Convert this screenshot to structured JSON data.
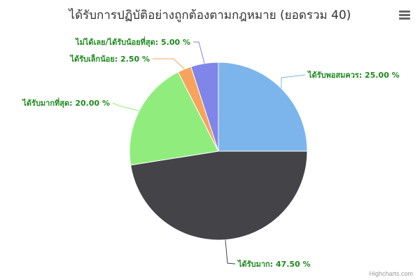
{
  "chart_data": {
    "type": "pie",
    "title": "ได้รับการปฏิบัติอย่างถูกต้องตามกฎหมาย (ยอดรวม 40)",
    "slices": [
      {
        "name": "ได้รับพอสมควร",
        "value": 25.0,
        "label": "ได้รับพอสมควร: 25.00 %",
        "color": "#7cb5ec"
      },
      {
        "name": "ได้รับมาก",
        "value": 47.5,
        "label": "ได้รับมาก: 47.50 %",
        "color": "#434348"
      },
      {
        "name": "ได้รับมากที่สุด",
        "value": 20.0,
        "label": "ได้รับมากที่สุด: 20.00 %",
        "color": "#90ed7d"
      },
      {
        "name": "ได้รับเล็กน้อย",
        "value": 2.5,
        "label": "ได้รับเล็กน้อย: 2.50 %",
        "color": "#f7a35c"
      },
      {
        "name": "ไม่ได้เลย/ได้รับน้อยที่สุด",
        "value": 5.0,
        "label": "ไม่ได้เลย/ได้รับน้อยที่สุด: 5.00 %",
        "color": "#8085e9"
      }
    ],
    "label_color": "#1e8a1e"
  },
  "credits": "Highcharts.com",
  "menu_icon": "hamburger-menu-icon"
}
